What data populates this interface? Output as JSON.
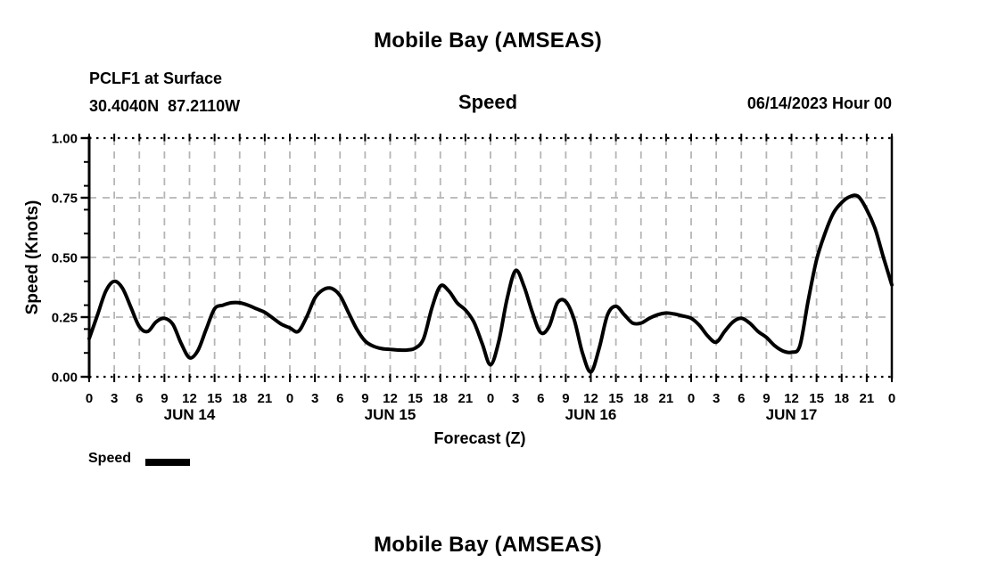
{
  "titles": {
    "top": "Mobile Bay (AMSEAS)",
    "bottom": "Mobile Bay (AMSEAS)"
  },
  "header": {
    "station": "PCLF1 at Surface",
    "coords": "30.4040N  87.2110W",
    "run_date": "06/14/2023 Hour 00"
  },
  "colors": {
    "line": "#000000",
    "grid": "#b5b5b5",
    "axis": "#000000",
    "text": "#000000",
    "background": "#ffffff"
  },
  "chart_data": {
    "type": "line",
    "title": "Speed",
    "xlabel": "Forecast (Z)",
    "ylabel": "Speed (Knots)",
    "x_range": [
      0,
      96
    ],
    "ylim": [
      0.0,
      1.0
    ],
    "grid": true,
    "legend": {
      "label": "Speed",
      "position": "bottom-left",
      "swatch_color": "#000000"
    },
    "yticks": {
      "values": [
        0.0,
        0.25,
        0.5,
        0.75,
        1.0
      ],
      "labels": [
        "0.00",
        "0.25",
        "0.50",
        "0.75",
        "1.00"
      ],
      "minor": [
        0.1,
        0.2,
        0.3,
        0.4,
        0.6,
        0.7,
        0.8,
        0.9
      ]
    },
    "xticks": {
      "hours": [
        0,
        3,
        6,
        9,
        12,
        15,
        18,
        21,
        24,
        27,
        30,
        33,
        36,
        39,
        42,
        45,
        48,
        51,
        54,
        57,
        60,
        63,
        66,
        69,
        72,
        75,
        78,
        81,
        84,
        87,
        90,
        93,
        96
      ],
      "labels": [
        "0",
        "3",
        "6",
        "9",
        "12",
        "15",
        "18",
        "21",
        "0",
        "3",
        "6",
        "9",
        "12",
        "15",
        "18",
        "21",
        "0",
        "3",
        "6",
        "9",
        "12",
        "15",
        "18",
        "21",
        "0",
        "3",
        "6",
        "9",
        "12",
        "15",
        "18",
        "21",
        "0"
      ]
    },
    "day_labels": [
      {
        "label": "JUN 14",
        "hour": 12
      },
      {
        "label": "JUN 15",
        "hour": 36
      },
      {
        "label": "JUN 16",
        "hour": 60
      },
      {
        "label": "JUN 17",
        "hour": 84
      }
    ],
    "series": [
      {
        "name": "Speed",
        "hours": [
          0,
          1,
          2,
          3,
          4,
          5,
          6,
          7,
          8,
          9,
          10,
          11,
          12,
          13,
          14,
          15,
          16,
          17,
          18,
          19,
          20,
          21,
          22,
          23,
          24,
          25,
          26,
          27,
          28,
          29,
          30,
          31,
          32,
          33,
          34,
          35,
          36,
          37,
          38,
          39,
          40,
          41,
          42,
          43,
          44,
          45,
          46,
          47,
          48,
          49,
          50,
          51,
          52,
          53,
          54,
          55,
          56,
          57,
          58,
          59,
          60,
          61,
          62,
          63,
          64,
          65,
          66,
          67,
          68,
          69,
          70,
          71,
          72,
          73,
          74,
          75,
          76,
          77,
          78,
          79,
          80,
          81,
          82,
          83,
          84,
          85,
          86,
          87,
          88,
          89,
          90,
          91,
          92,
          93,
          94,
          95,
          96
        ],
        "values": [
          0.16,
          0.26,
          0.36,
          0.4,
          0.37,
          0.29,
          0.21,
          0.19,
          0.23,
          0.245,
          0.22,
          0.14,
          0.08,
          0.11,
          0.2,
          0.285,
          0.3,
          0.31,
          0.31,
          0.3,
          0.285,
          0.27,
          0.245,
          0.22,
          0.205,
          0.19,
          0.25,
          0.33,
          0.365,
          0.37,
          0.34,
          0.27,
          0.2,
          0.15,
          0.128,
          0.118,
          0.115,
          0.112,
          0.112,
          0.12,
          0.16,
          0.29,
          0.38,
          0.36,
          0.31,
          0.28,
          0.23,
          0.14,
          0.05,
          0.15,
          0.33,
          0.445,
          0.38,
          0.27,
          0.185,
          0.21,
          0.31,
          0.315,
          0.24,
          0.1,
          0.02,
          0.12,
          0.26,
          0.295,
          0.26,
          0.225,
          0.225,
          0.245,
          0.26,
          0.267,
          0.263,
          0.255,
          0.245,
          0.215,
          0.17,
          0.145,
          0.19,
          0.23,
          0.245,
          0.225,
          0.19,
          0.165,
          0.13,
          0.108,
          0.103,
          0.13,
          0.32,
          0.49,
          0.6,
          0.685,
          0.73,
          0.755,
          0.755,
          0.7,
          0.62,
          0.5,
          0.385
        ]
      }
    ]
  }
}
